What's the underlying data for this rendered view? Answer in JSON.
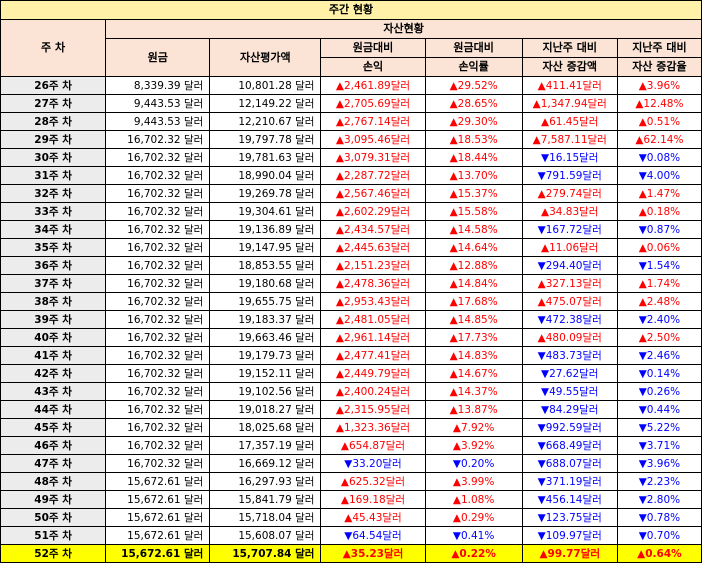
{
  "title": "주간 현황",
  "headers": {
    "week": "주 차",
    "group": "자산현황",
    "cols": [
      {
        "line1": "원금",
        "line2": ""
      },
      {
        "line1": "자산평가액",
        "line2": ""
      },
      {
        "line1": "원금대비",
        "line2": "손익"
      },
      {
        "line1": "원금대비",
        "line2": "손익률"
      },
      {
        "line1": "지난주 대비",
        "line2": "자산 증감액"
      },
      {
        "line1": "지난주 대비",
        "line2": "자산 증감율"
      }
    ]
  },
  "colors": {
    "up": "#ff0000",
    "down": "#0000ff",
    "highlight": "#ffff00"
  },
  "rows": [
    {
      "week": "26주 차",
      "principal": "8,339.39 달러",
      "value": "10,801.28 달러",
      "pl": "▲2,461.89달러",
      "pl_dir": "up",
      "plr": "▲29.52%",
      "plr_dir": "up",
      "chg": "▲411.41달러",
      "chg_dir": "up",
      "chgr": "▲3.96%",
      "chgr_dir": "up"
    },
    {
      "week": "27주 차",
      "principal": "9,443.53 달러",
      "value": "12,149.22 달러",
      "pl": "▲2,705.69달러",
      "pl_dir": "up",
      "plr": "▲28.65%",
      "plr_dir": "up",
      "chg": "▲1,347.94달러",
      "chg_dir": "up",
      "chgr": "▲12.48%",
      "chgr_dir": "up"
    },
    {
      "week": "28주 차",
      "principal": "9,443.53 달러",
      "value": "12,210.67 달러",
      "pl": "▲2,767.14달러",
      "pl_dir": "up",
      "plr": "▲29.30%",
      "plr_dir": "up",
      "chg": "▲61.45달러",
      "chg_dir": "up",
      "chgr": "▲0.51%",
      "chgr_dir": "up"
    },
    {
      "week": "29주 차",
      "principal": "16,702.32 달러",
      "value": "19,797.78 달러",
      "pl": "▲3,095.46달러",
      "pl_dir": "up",
      "plr": "▲18.53%",
      "plr_dir": "up",
      "chg": "▲7,587.11달러",
      "chg_dir": "up",
      "chgr": "▲62.14%",
      "chgr_dir": "up"
    },
    {
      "week": "30주 차",
      "principal": "16,702.32 달러",
      "value": "19,781.63 달러",
      "pl": "▲3,079.31달러",
      "pl_dir": "up",
      "plr": "▲18.44%",
      "plr_dir": "up",
      "chg": "▼16.15달러",
      "chg_dir": "down",
      "chgr": "▼0.08%",
      "chgr_dir": "down"
    },
    {
      "week": "31주 차",
      "principal": "16,702.32 달러",
      "value": "18,990.04 달러",
      "pl": "▲2,287.72달러",
      "pl_dir": "up",
      "plr": "▲13.70%",
      "plr_dir": "up",
      "chg": "▼791.59달러",
      "chg_dir": "down",
      "chgr": "▼4.00%",
      "chgr_dir": "down"
    },
    {
      "week": "32주 차",
      "principal": "16,702.32 달러",
      "value": "19,269.78 달러",
      "pl": "▲2,567.46달러",
      "pl_dir": "up",
      "plr": "▲15.37%",
      "plr_dir": "up",
      "chg": "▲279.74달러",
      "chg_dir": "up",
      "chgr": "▲1.47%",
      "chgr_dir": "up"
    },
    {
      "week": "33주 차",
      "principal": "16,702.32 달러",
      "value": "19,304.61 달러",
      "pl": "▲2,602.29달러",
      "pl_dir": "up",
      "plr": "▲15.58%",
      "plr_dir": "up",
      "chg": "▲34.83달러",
      "chg_dir": "up",
      "chgr": "▲0.18%",
      "chgr_dir": "up"
    },
    {
      "week": "34주 차",
      "principal": "16,702.32 달러",
      "value": "19,136.89 달러",
      "pl": "▲2,434.57달러",
      "pl_dir": "up",
      "plr": "▲14.58%",
      "plr_dir": "up",
      "chg": "▼167.72달러",
      "chg_dir": "down",
      "chgr": "▼0.87%",
      "chgr_dir": "down"
    },
    {
      "week": "35주 차",
      "principal": "16,702.32 달러",
      "value": "19,147.95 달러",
      "pl": "▲2,445.63달러",
      "pl_dir": "up",
      "plr": "▲14.64%",
      "plr_dir": "up",
      "chg": "▲11.06달러",
      "chg_dir": "up",
      "chgr": "▲0.06%",
      "chgr_dir": "up"
    },
    {
      "week": "36주 차",
      "principal": "16,702.32 달러",
      "value": "18,853.55 달러",
      "pl": "▲2,151.23달러",
      "pl_dir": "up",
      "plr": "▲12.88%",
      "plr_dir": "up",
      "chg": "▼294.40달러",
      "chg_dir": "down",
      "chgr": "▼1.54%",
      "chgr_dir": "down"
    },
    {
      "week": "37주 차",
      "principal": "16,702.32 달러",
      "value": "19,180.68 달러",
      "pl": "▲2,478.36달러",
      "pl_dir": "up",
      "plr": "▲14.84%",
      "plr_dir": "up",
      "chg": "▲327.13달러",
      "chg_dir": "up",
      "chgr": "▲1.74%",
      "chgr_dir": "up"
    },
    {
      "week": "38주 차",
      "principal": "16,702.32 달러",
      "value": "19,655.75 달러",
      "pl": "▲2,953.43달러",
      "pl_dir": "up",
      "plr": "▲17.68%",
      "plr_dir": "up",
      "chg": "▲475.07달러",
      "chg_dir": "up",
      "chgr": "▲2.48%",
      "chgr_dir": "up"
    },
    {
      "week": "39주 차",
      "principal": "16,702.32 달러",
      "value": "19,183.37 달러",
      "pl": "▲2,481.05달러",
      "pl_dir": "up",
      "plr": "▲14.85%",
      "plr_dir": "up",
      "chg": "▼472.38달러",
      "chg_dir": "down",
      "chgr": "▼2.40%",
      "chgr_dir": "down"
    },
    {
      "week": "40주 차",
      "principal": "16,702.32 달러",
      "value": "19,663.46 달러",
      "pl": "▲2,961.14달러",
      "pl_dir": "up",
      "plr": "▲17.73%",
      "plr_dir": "up",
      "chg": "▲480.09달러",
      "chg_dir": "up",
      "chgr": "▲2.50%",
      "chgr_dir": "up"
    },
    {
      "week": "41주 차",
      "principal": "16,702.32 달러",
      "value": "19,179.73 달러",
      "pl": "▲2,477.41달러",
      "pl_dir": "up",
      "plr": "▲14.83%",
      "plr_dir": "up",
      "chg": "▼483.73달러",
      "chg_dir": "down",
      "chgr": "▼2.46%",
      "chgr_dir": "down"
    },
    {
      "week": "42주 차",
      "principal": "16,702.32 달러",
      "value": "19,152.11 달러",
      "pl": "▲2,449.79달러",
      "pl_dir": "up",
      "plr": "▲14.67%",
      "plr_dir": "up",
      "chg": "▼27.62달러",
      "chg_dir": "down",
      "chgr": "▼0.14%",
      "chgr_dir": "down"
    },
    {
      "week": "43주 차",
      "principal": "16,702.32 달러",
      "value": "19,102.56 달러",
      "pl": "▲2,400.24달러",
      "pl_dir": "up",
      "plr": "▲14.37%",
      "plr_dir": "up",
      "chg": "▼49.55달러",
      "chg_dir": "down",
      "chgr": "▼0.26%",
      "chgr_dir": "down"
    },
    {
      "week": "44주 차",
      "principal": "16,702.32 달러",
      "value": "19,018.27 달러",
      "pl": "▲2,315.95달러",
      "pl_dir": "up",
      "plr": "▲13.87%",
      "plr_dir": "up",
      "chg": "▼84.29달러",
      "chg_dir": "down",
      "chgr": "▼0.44%",
      "chgr_dir": "down"
    },
    {
      "week": "45주 차",
      "principal": "16,702.32 달러",
      "value": "18,025.68 달러",
      "pl": "▲1,323.36달러",
      "pl_dir": "up",
      "plr": "▲7.92%",
      "plr_dir": "up",
      "chg": "▼992.59달러",
      "chg_dir": "down",
      "chgr": "▼5.22%",
      "chgr_dir": "down"
    },
    {
      "week": "46주 차",
      "principal": "16,702.32 달러",
      "value": "17,357.19 달러",
      "pl": "▲654.87달러",
      "pl_dir": "up",
      "plr": "▲3.92%",
      "plr_dir": "up",
      "chg": "▼668.49달러",
      "chg_dir": "down",
      "chgr": "▼3.71%",
      "chgr_dir": "down"
    },
    {
      "week": "47주 차",
      "principal": "16,702.32 달러",
      "value": "16,669.12 달러",
      "pl": "▼33.20달러",
      "pl_dir": "down",
      "plr": "▼0.20%",
      "plr_dir": "down",
      "chg": "▼688.07달러",
      "chg_dir": "down",
      "chgr": "▼3.96%",
      "chgr_dir": "down"
    },
    {
      "week": "48주 차",
      "principal": "15,672.61 달러",
      "value": "16,297.93 달러",
      "pl": "▲625.32달러",
      "pl_dir": "up",
      "plr": "▲3.99%",
      "plr_dir": "up",
      "chg": "▼371.19달러",
      "chg_dir": "down",
      "chgr": "▼2.23%",
      "chgr_dir": "down"
    },
    {
      "week": "49주 차",
      "principal": "15,672.61 달러",
      "value": "15,841.79 달러",
      "pl": "▲169.18달러",
      "pl_dir": "up",
      "plr": "▲1.08%",
      "plr_dir": "up",
      "chg": "▼456.14달러",
      "chg_dir": "down",
      "chgr": "▼2.80%",
      "chgr_dir": "down"
    },
    {
      "week": "50주 차",
      "principal": "15,672.61 달러",
      "value": "15,718.04 달러",
      "pl": "▲45.43달러",
      "pl_dir": "up",
      "plr": "▲0.29%",
      "plr_dir": "up",
      "chg": "▼123.75달러",
      "chg_dir": "down",
      "chgr": "▼0.78%",
      "chgr_dir": "down"
    },
    {
      "week": "51주 차",
      "principal": "15,672.61 달러",
      "value": "15,608.07 달러",
      "pl": "▼64.54달러",
      "pl_dir": "down",
      "plr": "▼0.41%",
      "plr_dir": "down",
      "chg": "▼109.97달러",
      "chg_dir": "down",
      "chgr": "▼0.70%",
      "chgr_dir": "down"
    },
    {
      "week": "52주 차",
      "principal": "15,672.61 달러",
      "value": "15,707.84 달러",
      "pl": "▲35.23달러",
      "pl_dir": "up",
      "plr": "▲0.22%",
      "plr_dir": "up",
      "chg": "▲99.77달러",
      "chg_dir": "up",
      "chgr": "▲0.64%",
      "chgr_dir": "up"
    }
  ]
}
